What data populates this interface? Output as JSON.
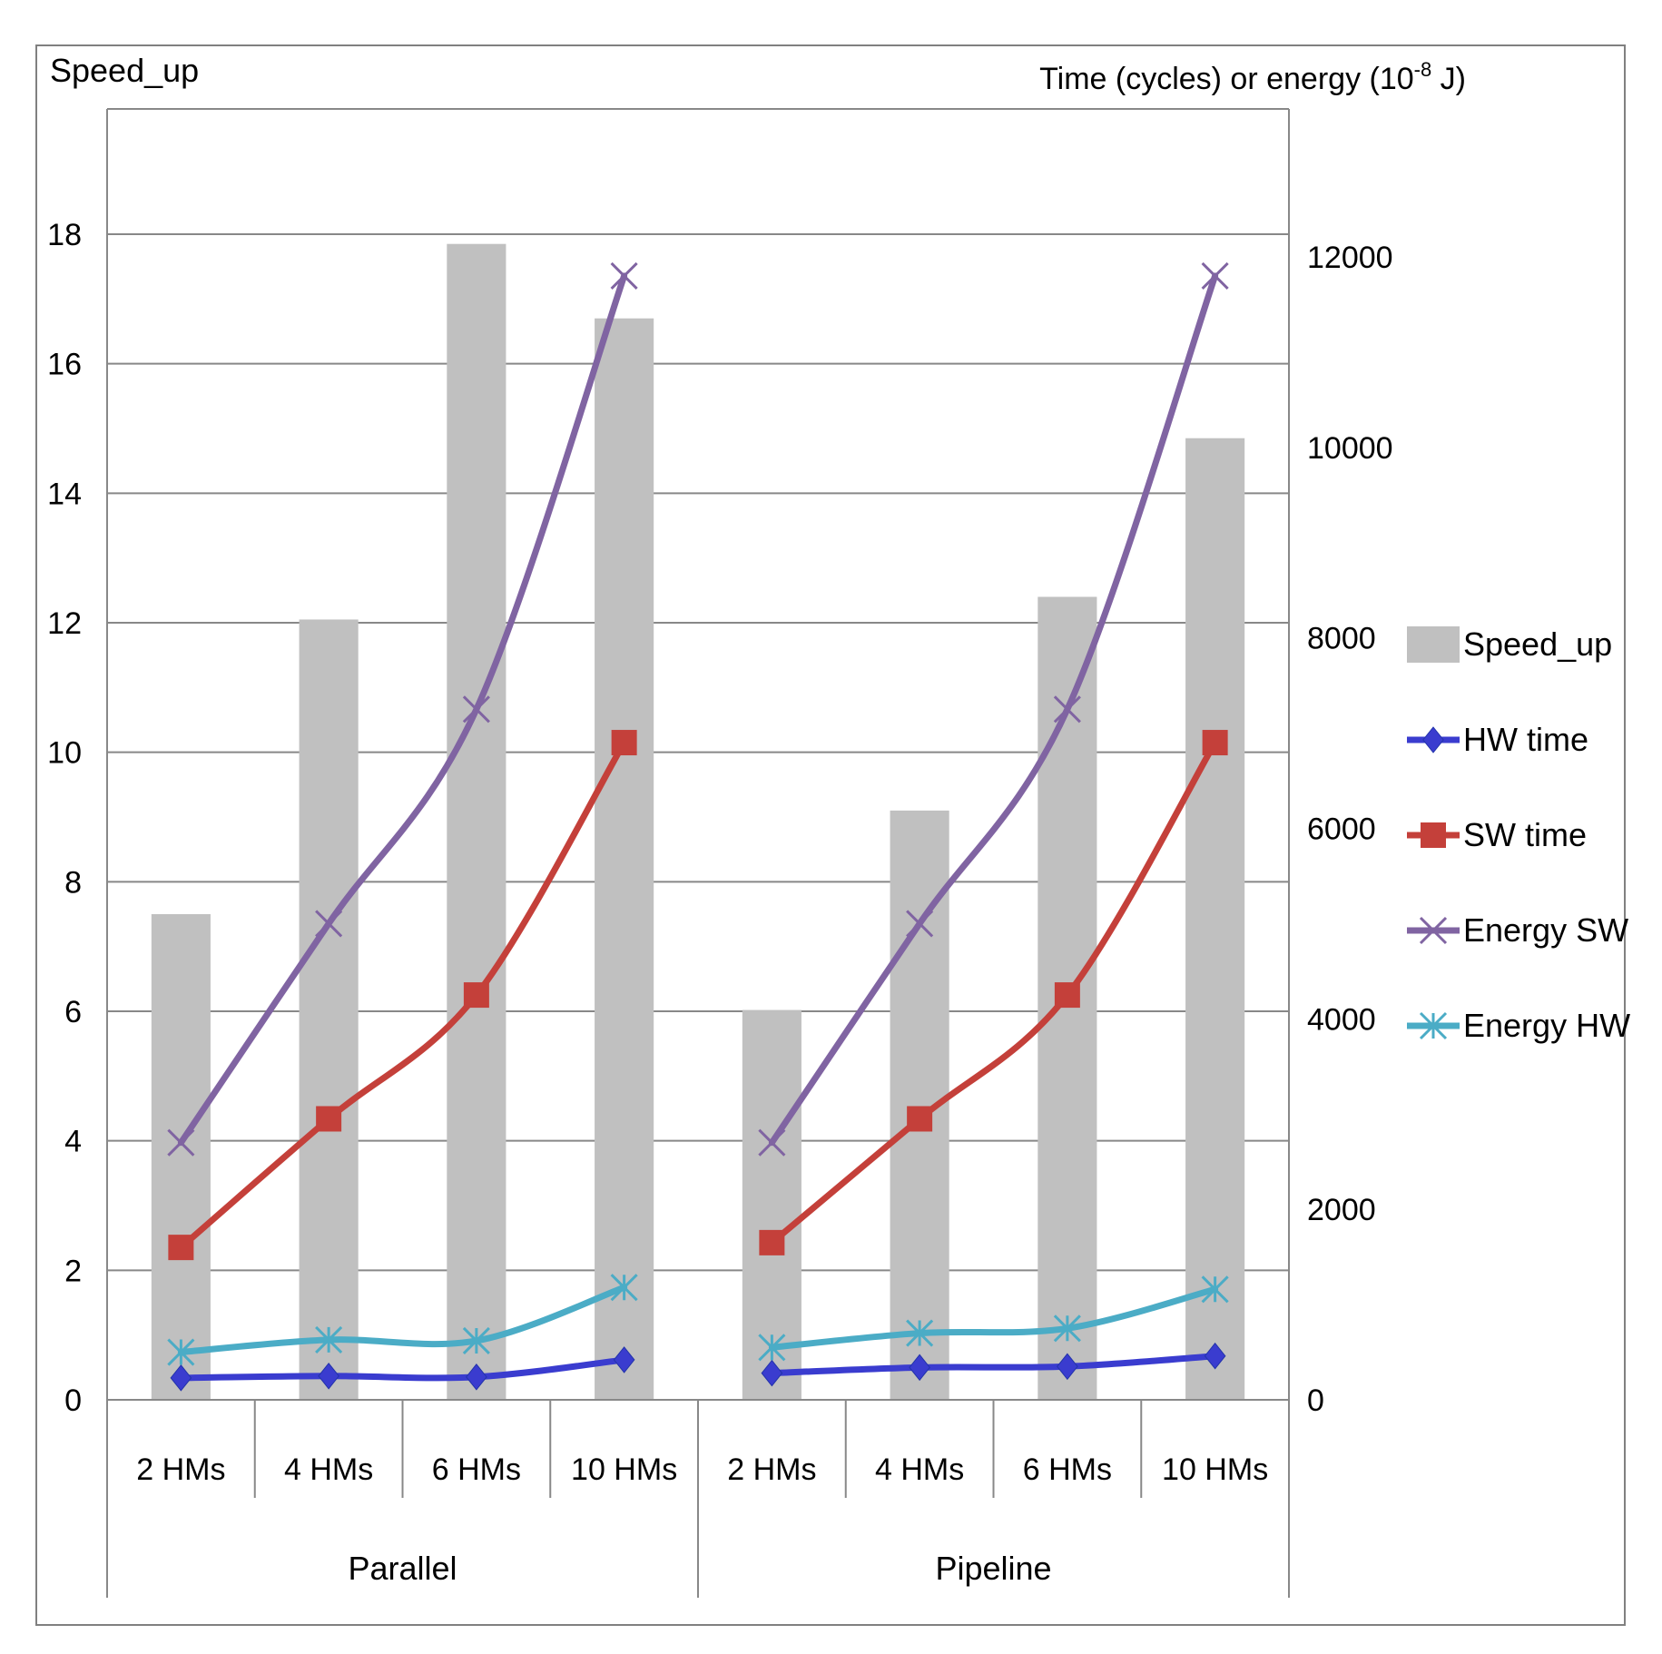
{
  "chart_data": {
    "type": "bar",
    "title": "",
    "ylabel_left": "Speed_up",
    "ylabel_right_prefix": "Time (cycles) or energy (10",
    "ylabel_right_exp": "-8",
    "ylabel_right_suffix": " J)",
    "groups": [
      {
        "label": "Parallel",
        "categories": [
          "2 HMs",
          "4 HMs",
          "6 HMs",
          "10 HMs"
        ]
      },
      {
        "label": "Pipeline",
        "categories": [
          "2 HMs",
          "4 HMs",
          "6 HMs",
          "10 HMs"
        ]
      }
    ],
    "ylim_left": [
      0,
      18
    ],
    "yticks_left": [
      "0",
      "2",
      "4",
      "6",
      "8",
      "10",
      "12",
      "14",
      "16",
      "18"
    ],
    "ylim_right": [
      0,
      12600
    ],
    "yticks_right": [
      "0",
      "2000",
      "4000",
      "6000",
      "8000",
      "10000",
      "12000"
    ],
    "grid": true,
    "legend_position": "right",
    "bars": {
      "name": "Speed_up",
      "axis": "left",
      "color": "#c0c0c0",
      "values": [
        7.5,
        12.05,
        17.85,
        16.7,
        6.02,
        9.1,
        12.4,
        14.85
      ]
    },
    "series": [
      {
        "name": "HW time",
        "axis": "right",
        "color": "#3a3ccf",
        "marker": "diamond",
        "values": [
          230,
          250,
          240,
          420,
          280,
          340,
          350,
          460
        ]
      },
      {
        "name": "SW time",
        "axis": "right",
        "color": "#c4403a",
        "marker": "square",
        "values": [
          1600,
          2950,
          4250,
          6900,
          1650,
          2950,
          4250,
          6900
        ]
      },
      {
        "name": "Energy  SW",
        "axis": "right",
        "color": "#8064a2",
        "marker": "x",
        "values": [
          2700,
          5000,
          7250,
          11800,
          2700,
          5000,
          7250,
          11800
        ]
      },
      {
        "name": "Energy HW",
        "axis": "right",
        "color": "#4bacc6",
        "marker": "asterisk",
        "values": [
          500,
          630,
          620,
          1180,
          550,
          700,
          750,
          1160
        ]
      }
    ]
  }
}
